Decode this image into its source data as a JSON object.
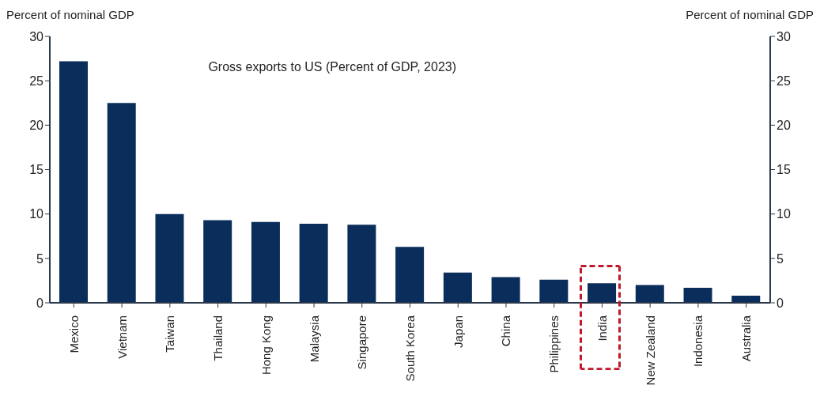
{
  "chart_data": {
    "type": "bar",
    "title": "Gross exports to US (Percent of GDP, 2023)",
    "ylabel": "Percent of nominal GDP",
    "y2label": "Percent of nominal GDP",
    "categories": [
      "Mexico",
      "Vietnam",
      "Taiwan",
      "Thailand",
      "Hong Kong",
      "Malaysia",
      "Singapore",
      "South Korea",
      "Japan",
      "China",
      "Philippines",
      "India",
      "New Zealand",
      "Indonesia",
      "Australia"
    ],
    "values": [
      27.2,
      22.5,
      10.0,
      9.3,
      9.1,
      8.9,
      8.8,
      6.3,
      3.4,
      2.9,
      2.6,
      2.2,
      2.0,
      1.7,
      0.8
    ],
    "color": "#0b2d5b",
    "ylim": [
      0,
      30
    ],
    "yticks": [
      0,
      5,
      10,
      15,
      20,
      25,
      30
    ],
    "y2lim": [
      0,
      30
    ],
    "y2ticks": [
      0,
      5,
      10,
      15,
      20,
      25,
      30
    ],
    "grid": false,
    "legend": false
  }
}
